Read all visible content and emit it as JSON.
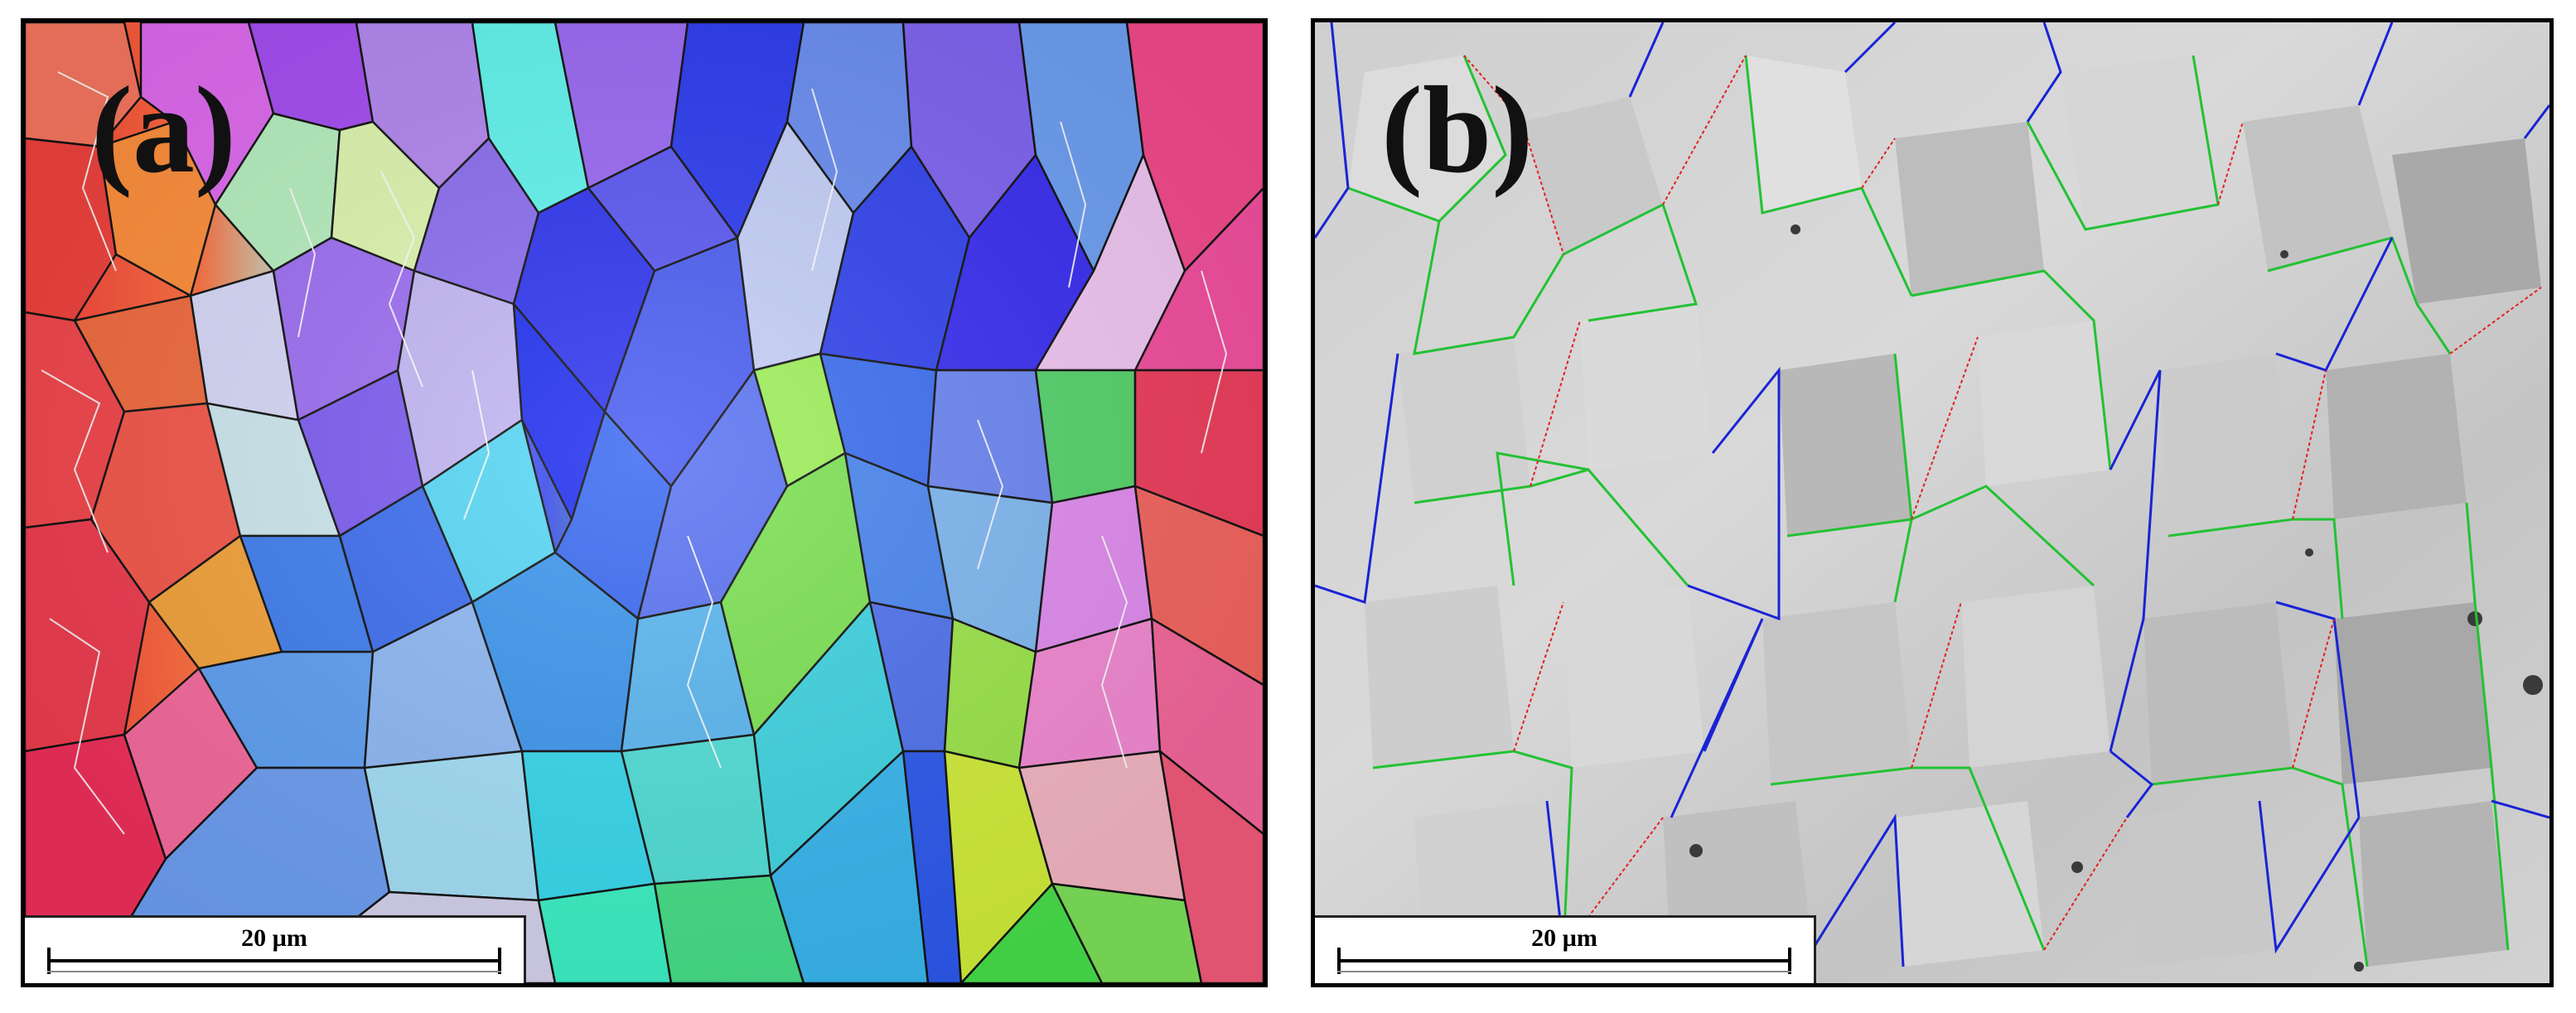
{
  "panels": [
    {
      "label": "(a)",
      "scale_bar_text": "20 µm",
      "kind": "EBSD inverse pole figure orientation map"
    },
    {
      "label": "(b)",
      "scale_bar_text": "20 µm",
      "kind": "EBSD band contrast map with grain boundary overlay",
      "boundary_colors": {
        "green": "#22c233",
        "blue": "#1a23d6",
        "red": "#e52020"
      }
    }
  ]
}
